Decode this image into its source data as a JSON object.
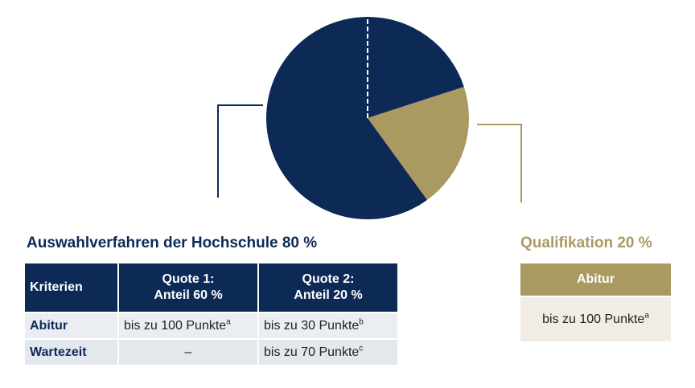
{
  "chart_data": {
    "type": "pie",
    "slices": [
      {
        "name": "Quote 1: Anteil 60 %",
        "value": 60,
        "color": "#0d2a57"
      },
      {
        "name": "Quote 2: Anteil 20 %",
        "value": 20,
        "color": "#0d2a57"
      },
      {
        "name": "Qualifikation 20 %",
        "value": 20,
        "color": "#ab9962"
      }
    ],
    "separator_style": "dashed white line at 12 o'clock",
    "colors": {
      "navy": "#0d2a57",
      "gold": "#ab9962"
    }
  },
  "left": {
    "title": "Auswahlverfahren der Hochschule 80 %",
    "headers": {
      "criteria": "Kriterien",
      "quote1_line1": "Quote 1:",
      "quote1_line2": "Anteil 60 %",
      "quote2_line1": "Quote 2:",
      "quote2_line2": "Anteil 20 %"
    },
    "rows": [
      {
        "label": "Abitur",
        "q1": "bis zu 100 Punkte",
        "q1_sup": "a",
        "q2": "bis zu 30 Punkte",
        "q2_sup": "b"
      },
      {
        "label": "Wartezeit",
        "q1": "–",
        "q1_sup": "",
        "q2": "bis zu 70 Punkte",
        "q2_sup": "c"
      }
    ]
  },
  "right": {
    "title": "Qualifikation 20 %",
    "header": "Abitur",
    "value": "bis zu 100 Punkte",
    "value_sup": "a"
  }
}
